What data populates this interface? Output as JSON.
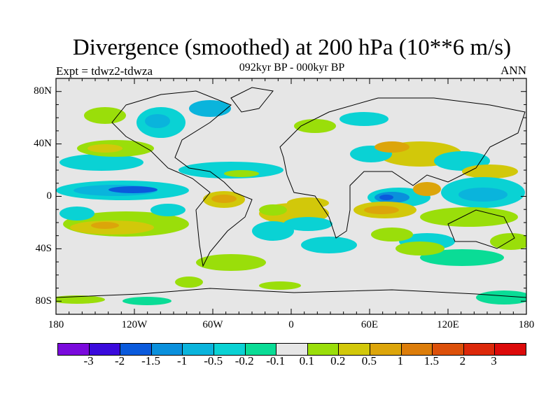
{
  "title": "Divergence (smoothed) at 200 hPa (10**6 m/s)",
  "left_label": "Expt = tdwz2-tdwza",
  "center_label": "092kyr BP - 000kyr BP",
  "right_label": "ANN",
  "lat_ticks": [
    "80N",
    "40N",
    "0",
    "40S",
    "80S"
  ],
  "lon_ticks": [
    "180",
    "120W",
    "60W",
    "0",
    "60E",
    "120E",
    "180"
  ],
  "colorbar": {
    "labels": [
      "-3",
      "-2",
      "-1.5",
      "-1",
      "-0.5",
      "-0.2",
      "-0.1",
      "0.1",
      "0.2",
      "0.5",
      "1",
      "1.5",
      "2",
      "3"
    ],
    "colors": [
      "#7a0adc",
      "#3a0adc",
      "#0a5adc",
      "#0a90dc",
      "#0ab4dc",
      "#0ad2d4",
      "#0adc96",
      "#e6e6e6",
      "#9ade0a",
      "#d2c80a",
      "#dca50a",
      "#dc7d0a",
      "#dc500a",
      "#dc280a",
      "#dc0a0a"
    ]
  }
}
